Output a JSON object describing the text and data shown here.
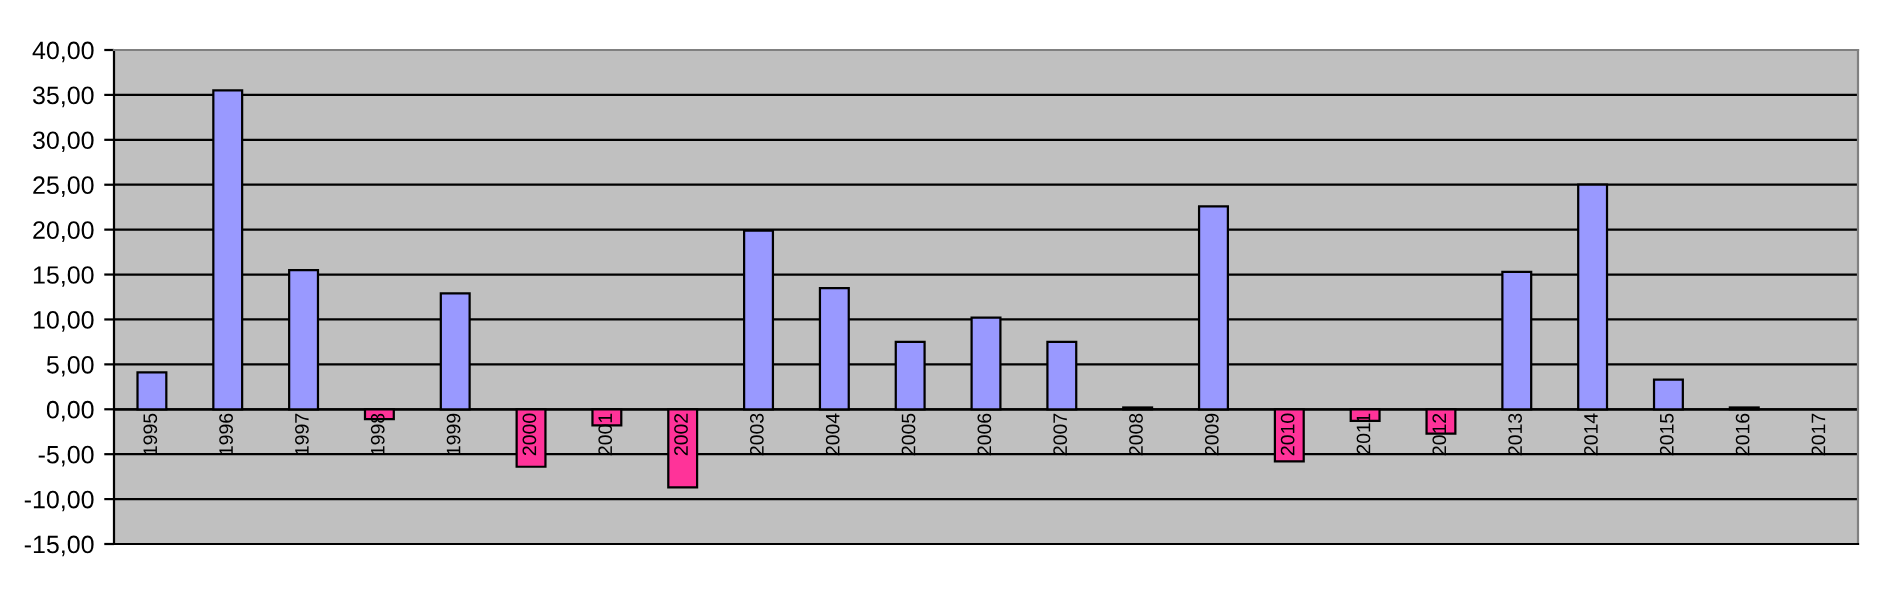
{
  "chart_data": {
    "type": "bar",
    "categories": [
      "1995",
      "1996",
      "1997",
      "1998",
      "1999",
      "2000",
      "2001",
      "2002",
      "2003",
      "2004",
      "2005",
      "2006",
      "2007",
      "2008",
      "2009",
      "2010",
      "2011",
      "2012",
      "2013",
      "2014",
      "2015",
      "2016",
      "2017"
    ],
    "values": [
      4.1,
      35.5,
      15.5,
      -1.1,
      12.9,
      -6.4,
      -1.8,
      -8.7,
      19.9,
      13.5,
      7.5,
      10.2,
      7.5,
      0.2,
      22.6,
      -5.8,
      -1.3,
      -2.7,
      15.3,
      25.0,
      3.3,
      0.2,
      null
    ],
    "colors": [
      "#9999ff",
      "#9999ff",
      "#9999ff",
      "#ff3399",
      "#9999ff",
      "#ff3399",
      "#ff3399",
      "#ff3399",
      "#9999ff",
      "#9999ff",
      "#9999ff",
      "#9999ff",
      "#9999ff",
      "#9999ff",
      "#9999ff",
      "#ff3399",
      "#ff3399",
      "#ff3399",
      "#9999ff",
      "#9999ff",
      "#9999ff",
      "#9999ff",
      "#9999ff"
    ],
    "ylim": [
      -15,
      40
    ],
    "yticks": [
      {
        "value": -15,
        "label": "-15,00"
      },
      {
        "value": -10,
        "label": "-10,00"
      },
      {
        "value": -5,
        "label": "-5,00"
      },
      {
        "value": 0,
        "label": "0,00"
      },
      {
        "value": 5,
        "label": "5,00"
      },
      {
        "value": 10,
        "label": "10,00"
      },
      {
        "value": 15,
        "label": "15,00"
      },
      {
        "value": 20,
        "label": "20,00"
      },
      {
        "value": 25,
        "label": "25,00"
      },
      {
        "value": 30,
        "label": "30,00"
      },
      {
        "value": 35,
        "label": "35,00"
      },
      {
        "value": 40,
        "label": "40,00"
      }
    ],
    "grid": "y",
    "legend": false
  }
}
